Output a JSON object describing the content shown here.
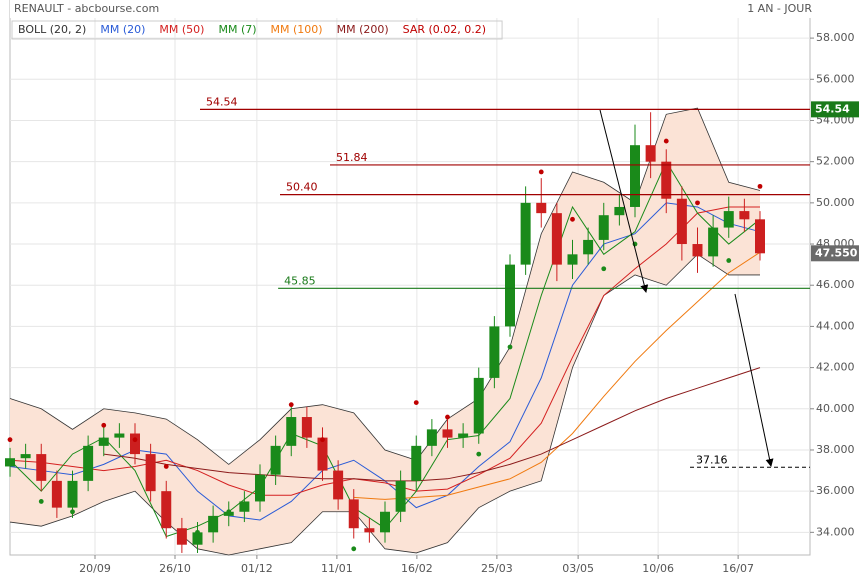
{
  "chart_data": {
    "type": "candlestick",
    "title": "RENAULT - abcbourse.com",
    "period": "1 AN - JOUR",
    "xlim": [
      0,
      256
    ],
    "ylim": [
      32.9,
      59.85
    ],
    "grid": true,
    "xticks": [
      {
        "value": 27.2,
        "label": "20/09"
      },
      {
        "value": 52.8,
        "label": "26/10"
      },
      {
        "value": 79,
        "label": "01/12"
      },
      {
        "value": 104.6,
        "label": "11/01"
      },
      {
        "value": 130.2,
        "label": "16/02"
      },
      {
        "value": 155.8,
        "label": "25/03"
      },
      {
        "value": 181.8,
        "label": "03/05"
      },
      {
        "value": 207.4,
        "label": "10/06"
      },
      {
        "value": 233,
        "label": "16/07"
      }
    ],
    "yticks": [
      {
        "value": 34,
        "label": "34.000"
      },
      {
        "value": 36,
        "label": "36.000"
      },
      {
        "value": 38,
        "label": "38.000"
      },
      {
        "value": 40,
        "label": "40.000"
      },
      {
        "value": 42,
        "label": "42.000"
      },
      {
        "value": 44,
        "label": "44.000"
      },
      {
        "value": 46,
        "label": "46.000"
      },
      {
        "value": 48,
        "label": "48.000"
      },
      {
        "value": 50,
        "label": "50.000"
      },
      {
        "value": 52,
        "label": "52.000"
      },
      {
        "value": 54,
        "label": "54.000"
      },
      {
        "value": 56,
        "label": "56.000"
      },
      {
        "value": 58,
        "label": "58.000"
      }
    ],
    "candles": {
      "up_color": "#1a8a1a",
      "down_color": "#cc1f1f",
      "x": [
        0,
        5,
        10,
        15,
        20,
        25,
        30,
        35,
        40,
        45,
        50,
        55,
        60,
        65,
        70,
        75,
        80,
        85,
        90,
        95,
        100,
        105,
        110,
        115,
        120,
        125,
        130,
        135,
        140,
        145,
        150,
        155,
        160,
        165,
        170,
        175,
        180,
        185,
        190,
        195,
        200,
        205,
        210,
        215,
        220,
        225,
        230,
        235,
        240
      ],
      "open": [
        37.2,
        37.6,
        37.8,
        36.5,
        35.2,
        36.5,
        38.2,
        38.6,
        38.8,
        37.8,
        36.0,
        34.2,
        33.4,
        34.0,
        34.8,
        35.0,
        35.5,
        36.8,
        38.2,
        39.6,
        38.6,
        37.0,
        35.6,
        34.2,
        34.0,
        35.0,
        36.5,
        38.2,
        39.0,
        38.6,
        38.8,
        41.5,
        44.0,
        47.0,
        50.0,
        49.5,
        47.0,
        47.5,
        48.2,
        49.4,
        49.8,
        52.8,
        52.0,
        50.2,
        48.0,
        47.4,
        48.8,
        49.6,
        49.2
      ],
      "high": [
        38.1,
        38.3,
        38.3,
        37.0,
        37.0,
        38.7,
        39.1,
        39.3,
        39.3,
        38.3,
        36.5,
        34.7,
        34.5,
        35.3,
        35.5,
        36.0,
        37.3,
        38.7,
        40.1,
        40.1,
        39.1,
        37.5,
        36.1,
        34.7,
        35.5,
        37.0,
        38.7,
        39.5,
        39.5,
        39.3,
        42.0,
        44.5,
        47.5,
        50.8,
        51.2,
        50.0,
        48.2,
        48.8,
        50.0,
        50.4,
        53.8,
        54.4,
        52.6,
        50.8,
        48.8,
        49.4,
        50.3,
        50.2,
        49.6
      ],
      "low": [
        36.7,
        37.1,
        36.0,
        34.7,
        34.7,
        36.0,
        37.7,
        38.1,
        37.3,
        35.5,
        33.7,
        33.0,
        33.0,
        33.5,
        34.3,
        34.5,
        35.0,
        36.3,
        37.7,
        38.1,
        36.5,
        35.1,
        33.7,
        33.5,
        33.5,
        34.5,
        36.0,
        37.7,
        38.1,
        38.1,
        38.3,
        41.0,
        43.5,
        46.5,
        48.8,
        46.2,
        46.3,
        47.0,
        47.7,
        48.9,
        49.3,
        51.2,
        49.5,
        47.2,
        46.6,
        46.9,
        48.3,
        48.6,
        47.2
      ],
      "close": [
        37.6,
        37.8,
        36.5,
        35.2,
        36.5,
        38.2,
        38.6,
        38.8,
        37.8,
        36.0,
        34.2,
        33.4,
        34.0,
        34.8,
        35.0,
        35.5,
        36.8,
        38.2,
        39.6,
        38.6,
        37.0,
        35.6,
        34.2,
        34.0,
        35.0,
        36.5,
        38.2,
        39.0,
        38.6,
        38.8,
        41.5,
        44.0,
        47.0,
        50.0,
        49.5,
        47.0,
        47.5,
        48.2,
        49.4,
        49.8,
        52.8,
        52.0,
        50.2,
        48.0,
        47.4,
        48.8,
        49.6,
        49.2,
        47.55
      ]
    },
    "x": [
      0,
      10,
      20,
      30,
      40,
      50,
      60,
      70,
      80,
      90,
      100,
      110,
      120,
      130,
      140,
      150,
      160,
      170,
      180,
      190,
      200,
      210,
      220,
      230,
      240
    ],
    "bollinger": {
      "name": "BOLL (20, 2)",
      "color": "#333333",
      "fill": "#fbe3d6",
      "upper": [
        40.5,
        40.0,
        39.0,
        40.0,
        39.8,
        39.5,
        38.5,
        37.3,
        38.5,
        40.0,
        40.2,
        39.8,
        38.0,
        37.5,
        39.5,
        40.5,
        43.0,
        48.5,
        51.5,
        51.0,
        50.0,
        54.3,
        54.6,
        51.0,
        50.6
      ],
      "lower": [
        34.5,
        34.3,
        34.8,
        35.5,
        36.0,
        34.5,
        33.2,
        32.9,
        33.2,
        33.5,
        35.0,
        35.0,
        33.2,
        33.0,
        33.5,
        35.2,
        36.0,
        36.5,
        42.0,
        45.5,
        46.5,
        46.0,
        47.5,
        46.5,
        46.5
      ]
    },
    "series": [
      {
        "name": "MM (20)",
        "color": "#2a5bd7",
        "values": [
          37.2,
          37.0,
          36.8,
          37.3,
          38.0,
          37.8,
          36.0,
          34.8,
          34.6,
          35.5,
          37.0,
          37.5,
          36.5,
          35.2,
          35.8,
          37.2,
          38.4,
          41.5,
          46.0,
          48.0,
          48.5,
          50.0,
          49.8,
          49.0,
          48.6
        ]
      },
      {
        "name": "MM (50)",
        "color": "#d42020",
        "values": [
          37.5,
          37.4,
          37.2,
          37.0,
          37.2,
          37.5,
          37.0,
          36.3,
          35.8,
          35.8,
          36.3,
          36.6,
          36.4,
          36.0,
          36.1,
          36.8,
          37.6,
          39.3,
          42.5,
          45.5,
          46.8,
          48.0,
          49.5,
          49.8,
          49.8
        ]
      },
      {
        "name": "MM (7)",
        "color": "#1a8a1a",
        "values": [
          37.5,
          36.0,
          37.8,
          38.6,
          37.0,
          33.8,
          34.3,
          35.0,
          36.2,
          38.8,
          38.2,
          35.2,
          34.2,
          36.0,
          38.5,
          38.7,
          40.5,
          45.5,
          49.8,
          47.5,
          48.6,
          52.0,
          49.5,
          48.0,
          49.2
        ]
      },
      {
        "name": "MM (100)",
        "color": "#f07a10",
        "values": [
          null,
          null,
          null,
          null,
          null,
          null,
          null,
          null,
          null,
          null,
          null,
          35.7,
          35.6,
          35.7,
          35.8,
          36.2,
          36.6,
          37.4,
          38.8,
          40.6,
          42.3,
          43.8,
          45.2,
          46.6,
          47.6
        ]
      },
      {
        "name": "MM (200)",
        "color": "#8b1a1a",
        "values": [
          null,
          null,
          null,
          37.8,
          37.6,
          37.3,
          37.1,
          36.9,
          36.8,
          36.7,
          36.6,
          36.6,
          36.5,
          36.5,
          36.6,
          36.9,
          37.3,
          37.8,
          38.5,
          39.2,
          39.9,
          40.5,
          41.0,
          41.5,
          42.0
        ]
      }
    ],
    "sar": {
      "name": "SAR (0.02, 0.2)",
      "color": "#c00000",
      "below_color": "#1a8a1a",
      "values": [
        38.5,
        35.5,
        35.0,
        39.2,
        38.5,
        37.2,
        34.0,
        35.0,
        36.0,
        40.2,
        38.5,
        33.2,
        34.8,
        40.3,
        39.6,
        37.8,
        43.0,
        51.5,
        49.2,
        46.8,
        48.0,
        53.0,
        50.0,
        47.2,
        50.8
      ]
    },
    "levels": [
      {
        "value": 54.54,
        "label": "54.54",
        "color": "#a00000",
        "x_start": 60.8,
        "dashed": false
      },
      {
        "value": 51.84,
        "label": "51.84",
        "color": "#a00000",
        "x_start": 102.4,
        "dashed": false
      },
      {
        "value": 50.4,
        "label": "50.40",
        "color": "#a00000",
        "x_start": 86.4,
        "dashed": false
      },
      {
        "value": 45.85,
        "label": "45.85",
        "color": "#1a7a1a",
        "x_start": 85.8,
        "dashed": false
      },
      {
        "value": 37.16,
        "label": "37.16",
        "color": "#000000",
        "x_start": 217.6,
        "dashed": true
      }
    ],
    "price_tags": [
      {
        "value": 54.54,
        "label": "54.54",
        "color": "#1a7a1a"
      },
      {
        "value": 47.55,
        "label": "47.550",
        "color": "#6a6a6a"
      }
    ]
  }
}
